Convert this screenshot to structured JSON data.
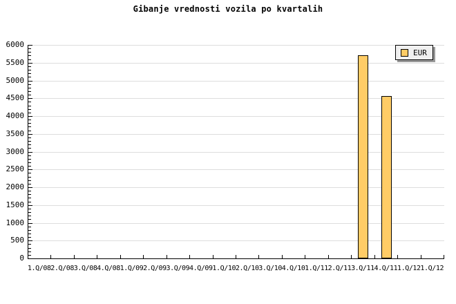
{
  "title": "Gibanje vrednosti vozila po kvartalih",
  "legend": {
    "label": "EUR"
  },
  "chart_data": {
    "type": "bar",
    "title": "Gibanje vrednosti vozila po kvartalih",
    "categories": [
      "1.Q/08",
      "2.Q/08",
      "3.Q/08",
      "4.Q/08",
      "1.Q/09",
      "2.Q/09",
      "3.Q/09",
      "4.Q/09",
      "1.Q/10",
      "2.Q/10",
      "3.Q/10",
      "4.Q/10",
      "1.Q/11",
      "2.Q/11",
      "3.Q/11",
      "4.Q/11",
      "1.Q/12",
      "1.Q/12"
    ],
    "series": [
      {
        "name": "EUR",
        "values": [
          null,
          null,
          null,
          null,
          null,
          null,
          null,
          null,
          null,
          null,
          null,
          null,
          null,
          null,
          5700,
          4560,
          null,
          null
        ]
      }
    ],
    "xlabel": "",
    "ylabel": "",
    "ylim": [
      0,
      6000
    ],
    "ytick_step": 500,
    "ytick_minor_step": 100,
    "ytick_labels": [
      "0",
      "500",
      "1000",
      "1500",
      "2000",
      "2500",
      "3000",
      "3500",
      "4000",
      "4500",
      "5000",
      "5500",
      "6000"
    ],
    "grid": true,
    "legend_position": "top-right",
    "colors": {
      "background": "#FFFFFF",
      "bar_fill": "#FFCC66",
      "bar_border": "#000000",
      "grid": "#DDDDDD",
      "axis": "#000000",
      "text": "#000000",
      "legend_bg": "#F0F0F0",
      "legend_shadow": "#999999"
    }
  }
}
